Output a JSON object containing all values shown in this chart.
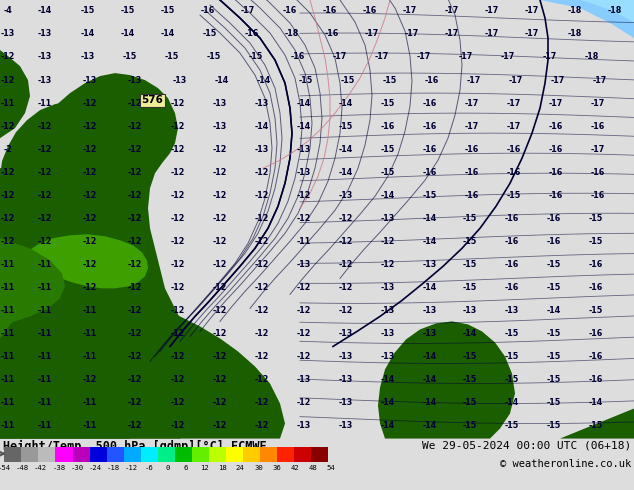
{
  "title_left": "Height/Temp. 500 hPa [gdmp][°C] ECMWF",
  "title_right": "We 29-05-2024 00:00 UTC (06+18)",
  "copyright": "© weatheronline.co.uk",
  "colorbar_label_vals": [
    -54,
    -48,
    -42,
    -38,
    -30,
    -24,
    -18,
    -12,
    -6,
    0,
    6,
    12,
    18,
    24,
    30,
    36,
    42,
    48,
    54
  ],
  "colorbar_colors": [
    "#666666",
    "#999999",
    "#bbbbbb",
    "#ff00ff",
    "#bb00bb",
    "#0000dd",
    "#2255ff",
    "#00aaff",
    "#00eeff",
    "#00ee88",
    "#00bb00",
    "#66ee00",
    "#bbff00",
    "#ffff00",
    "#ffcc00",
    "#ff8800",
    "#ff2200",
    "#cc0000",
    "#880000"
  ],
  "sea_color": "#00e0f0",
  "land_dark": "#1a5e00",
  "land_mid": "#287a00",
  "land_light": "#3da000",
  "land_lighter": "#5cc400",
  "sea_light_blue": "#88ccff",
  "contour_color": "#000033",
  "border_color": "#cc7788",
  "box_color": "#eeee99",
  "fig_bg": "#dddddd",
  "bottom_bg": "#cccccc"
}
